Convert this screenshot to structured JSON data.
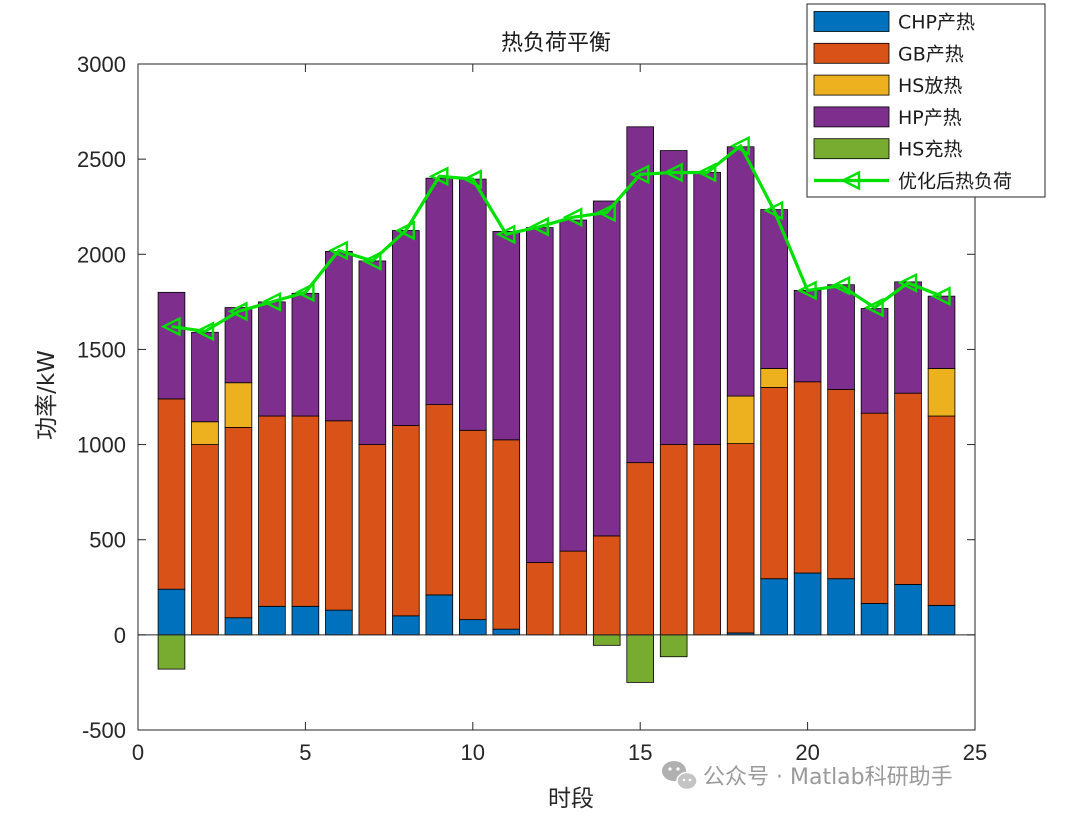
{
  "chart_data": {
    "type": "bar",
    "stacked": true,
    "title": "热负荷平衡",
    "xlabel": "时段",
    "ylabel": "功率/kW",
    "xlim": [
      0,
      25
    ],
    "ylim": [
      -500,
      3000
    ],
    "xticks": [
      0,
      5,
      10,
      15,
      20,
      25
    ],
    "yticks": [
      -500,
      0,
      500,
      1000,
      1500,
      2000,
      2500,
      3000
    ],
    "x": [
      1,
      2,
      3,
      4,
      5,
      6,
      7,
      8,
      9,
      10,
      11,
      12,
      13,
      14,
      15,
      16,
      17,
      18,
      19,
      20,
      21,
      22,
      23,
      24
    ],
    "series": [
      {
        "name": "CHP产热",
        "color": "#0072BD",
        "values": [
          240,
          0,
          90,
          150,
          150,
          130,
          0,
          100,
          210,
          80,
          30,
          0,
          0,
          0,
          0,
          0,
          0,
          10,
          295,
          325,
          295,
          165,
          265,
          155
        ]
      },
      {
        "name": "GB产热",
        "color": "#D95319",
        "values": [
          1000,
          1000,
          1000,
          1000,
          1000,
          995,
          1000,
          1000,
          1000,
          995,
          995,
          380,
          440,
          520,
          905,
          1000,
          1000,
          995,
          1005,
          1005,
          995,
          1000,
          1005,
          995
        ]
      },
      {
        "name": "HS放热",
        "color": "#EDB120",
        "values": [
          0,
          120,
          235,
          0,
          0,
          0,
          0,
          0,
          0,
          0,
          0,
          0,
          0,
          0,
          0,
          0,
          0,
          250,
          100,
          0,
          0,
          0,
          0,
          250
        ]
      },
      {
        "name": "HP产热",
        "color": "#7E2F8E",
        "values": [
          560,
          470,
          395,
          600,
          645,
          890,
          965,
          1025,
          1190,
          1320,
          1095,
          1760,
          1740,
          1760,
          1765,
          1545,
          1430,
          1310,
          835,
          480,
          550,
          550,
          585,
          380
        ]
      },
      {
        "name": "HS充热",
        "color": "#77AC30",
        "values": [
          -180,
          0,
          0,
          0,
          0,
          0,
          0,
          0,
          0,
          0,
          0,
          0,
          0,
          -55,
          -250,
          -115,
          0,
          0,
          0,
          0,
          0,
          0,
          0,
          0
        ]
      }
    ],
    "line": {
      "name": "优化后热负荷",
      "color": "#00E000",
      "values": [
        1620,
        1595,
        1700,
        1750,
        1800,
        2020,
        1965,
        2125,
        2410,
        2395,
        2105,
        2145,
        2195,
        2220,
        2420,
        2430,
        2430,
        2570,
        2230,
        1810,
        1835,
        1720,
        1850,
        1780
      ]
    },
    "legend_position": "top-right"
  },
  "watermark": {
    "text": "公众号 · Matlab科研助手"
  }
}
